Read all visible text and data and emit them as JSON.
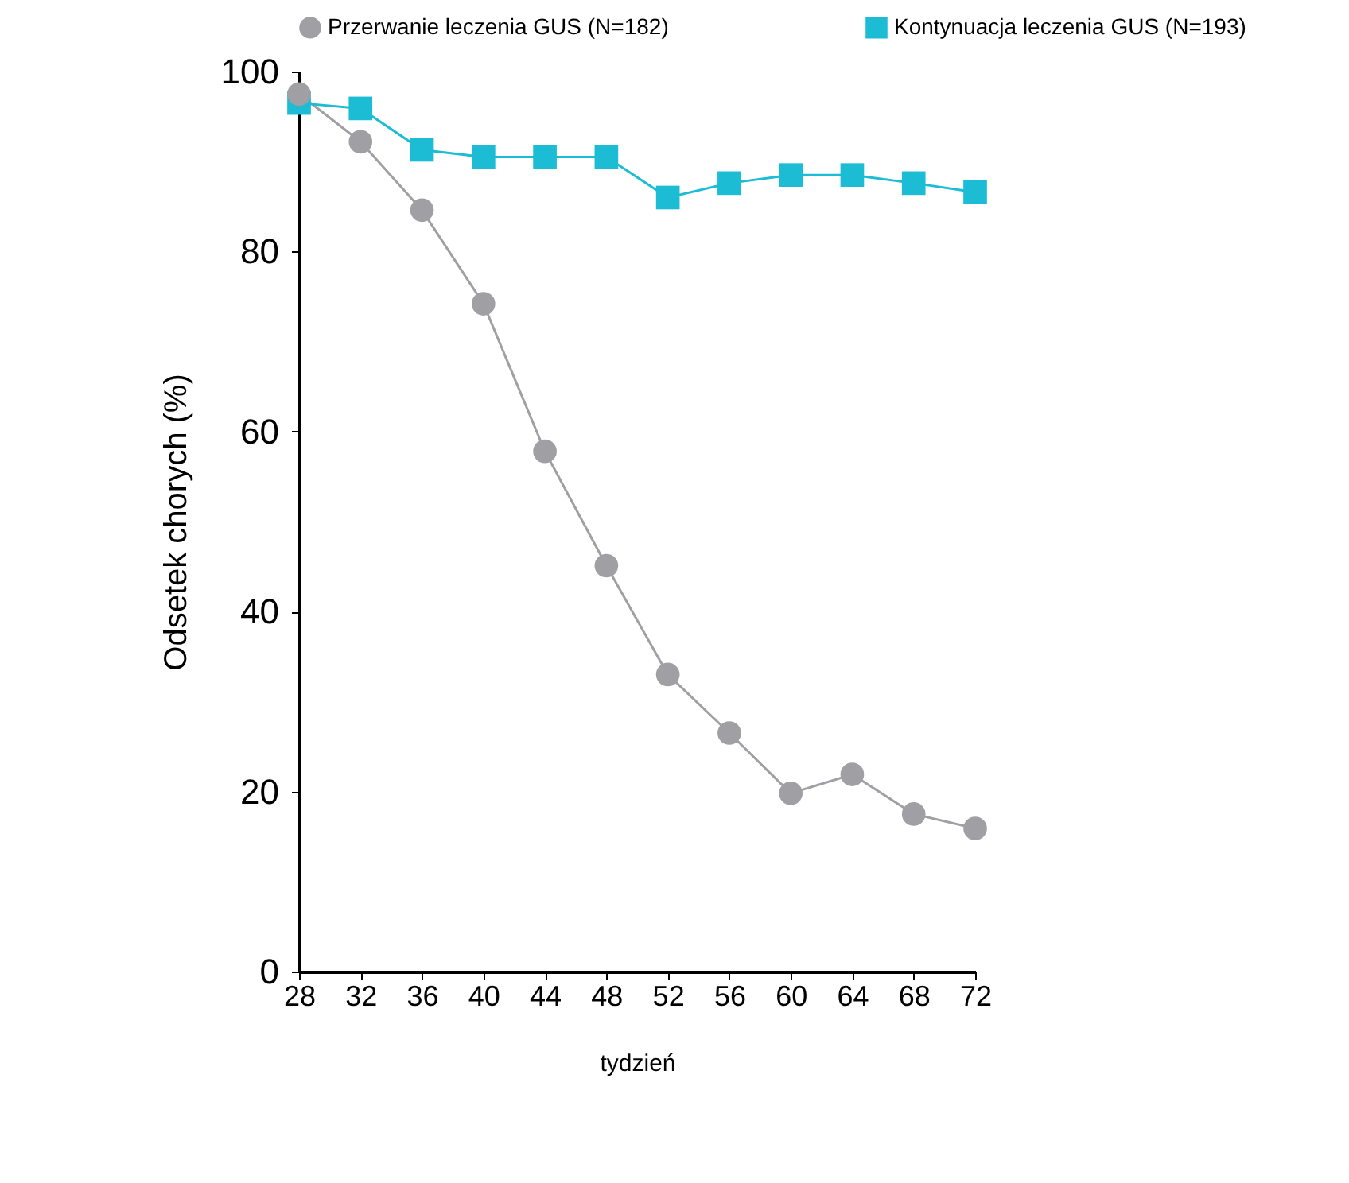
{
  "chart_data": {
    "type": "line",
    "xlabel": "tydzień",
    "ylabel": "Odsetek chorych (%)",
    "x": [
      28,
      32,
      36,
      40,
      44,
      48,
      52,
      56,
      60,
      64,
      68,
      72
    ],
    "series": [
      {
        "name": "Przerwanie leczenia GUS (N=182)",
        "color": "#a0a0a4",
        "marker": "circle",
        "values": [
          97.5,
          92.2,
          84.6,
          74.2,
          57.8,
          45.1,
          33.0,
          26.5,
          19.8,
          21.9,
          17.5,
          15.9
        ]
      },
      {
        "name": "Kontynuacja leczenia GUS (N=193)",
        "color": "#1bbcd4",
        "marker": "square",
        "values": [
          96.5,
          95.9,
          91.3,
          90.5,
          90.5,
          90.5,
          86.0,
          87.6,
          88.5,
          88.5,
          87.6,
          86.6
        ]
      }
    ],
    "xlim": [
      28,
      72
    ],
    "xticks": [
      28,
      32,
      36,
      40,
      44,
      48,
      52,
      56,
      60,
      64,
      68,
      72
    ],
    "ylim": [
      0,
      100
    ],
    "yticks": [
      0,
      20,
      40,
      60,
      80,
      100
    ],
    "grid": false,
    "legend": "top",
    "line_style": "solid"
  }
}
